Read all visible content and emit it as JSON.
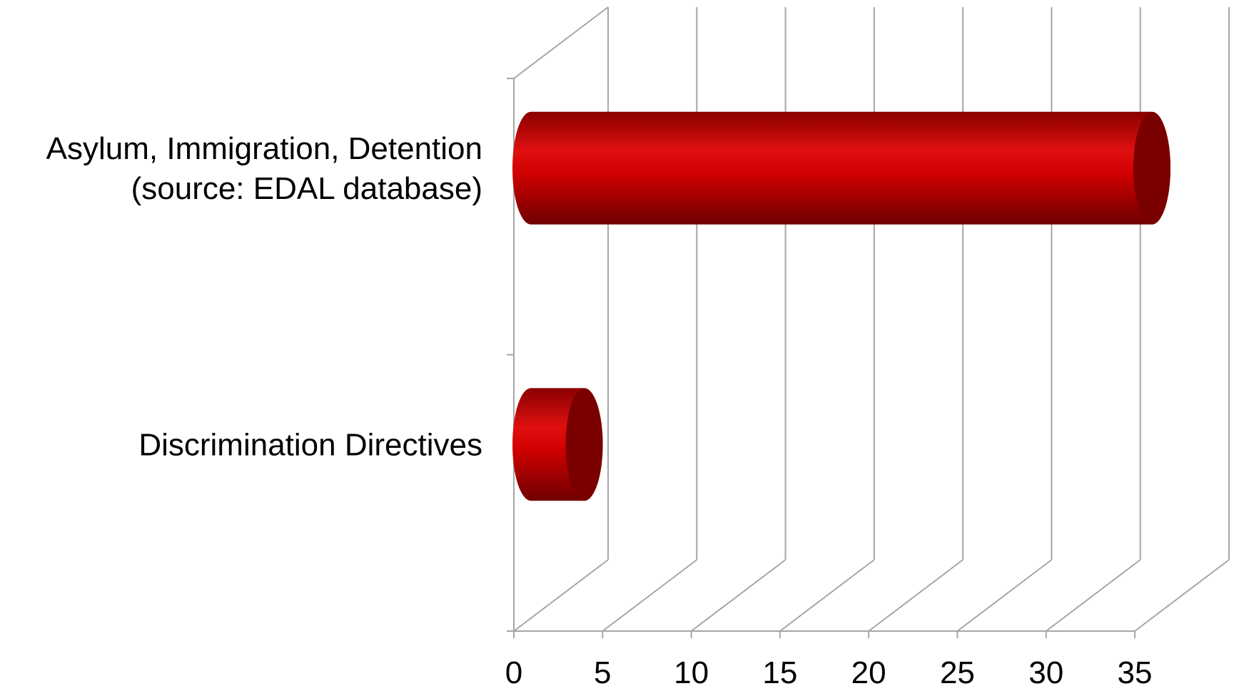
{
  "chart_data": {
    "type": "bar",
    "orientation": "horizontal",
    "style": "3d-cylinder",
    "categories": [
      [
        "Asylum, Immigration, Detention",
        "(source: EDAL database)"
      ],
      [
        "Discrimination Directives"
      ]
    ],
    "values": [
      35,
      3
    ],
    "xlim": [
      0,
      35
    ],
    "xticks": [
      0,
      5,
      10,
      15,
      20,
      25,
      30,
      35
    ],
    "title": "",
    "xlabel": "",
    "ylabel": "",
    "grid": true,
    "legend": "none",
    "colors": {
      "bar": "#d00000",
      "bar_dark": "#6e0000",
      "bar_light": "#e01010",
      "cap": "#7a0000",
      "grid": "#a6a6a6"
    }
  }
}
